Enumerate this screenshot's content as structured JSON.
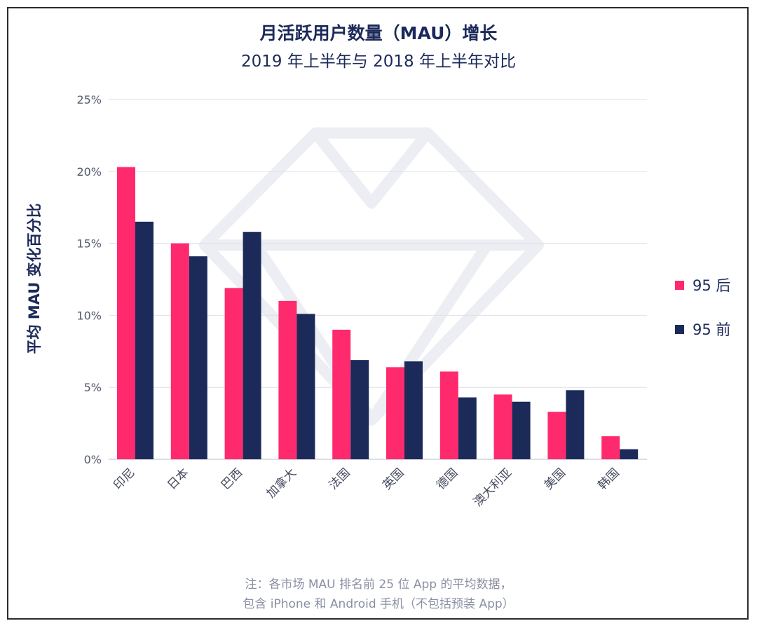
{
  "chart_data": {
    "type": "bar",
    "title": "月活跃用户数量（MAU）增长",
    "subtitle": "2019 年上半年与 2018 年上半年对比",
    "ylabel": "平均 MAU 变化百分比",
    "xlabel": "",
    "categories": [
      "印尼",
      "日本",
      "巴西",
      "加拿大",
      "法国",
      "英国",
      "德国",
      "澳大利亚",
      "美国",
      "韩国"
    ],
    "series": [
      {
        "name": "95 后",
        "color": "#ff2a6d",
        "values": [
          20.3,
          15.0,
          11.9,
          11.0,
          9.0,
          6.4,
          6.1,
          4.5,
          3.3,
          1.6
        ]
      },
      {
        "name": "95 前",
        "color": "#1c2a5a",
        "values": [
          16.5,
          14.1,
          15.8,
          10.1,
          6.9,
          6.8,
          4.3,
          4.0,
          4.8,
          0.7
        ]
      }
    ],
    "ylim": [
      0,
      25
    ],
    "yticks": [
      "0%",
      "5%",
      "10%",
      "15%",
      "20%",
      "25%"
    ],
    "grid": true,
    "legend_position": "right"
  },
  "note": {
    "line1": "注：各市场 MAU 排名前 25 位 App 的平均数据，",
    "line2": "包含 iPhone 和 Android 手机（不包括预装 App）"
  }
}
